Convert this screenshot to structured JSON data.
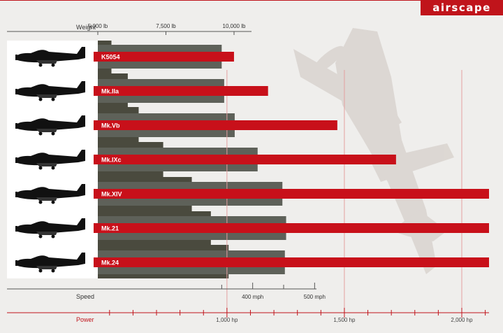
{
  "brand": {
    "logo_text": "airscape",
    "color": "#c0141b"
  },
  "chart_data": {
    "type": "bar",
    "categories": [
      "K5054",
      "Mk.IIa",
      "Mk.Vb",
      "Mk.IXc",
      "Mk.XIV",
      "Mk.21",
      "Mk.24"
    ],
    "series": [
      {
        "values": [
          5500,
          6100,
          6500,
          7400,
          8450,
          9150,
          9800
        ],
        "color": "#4a4a3e"
      },
      {
        "values": [
          350,
          354,
          371,
          408,
          448,
          454,
          452
        ],
        "color": "#5e6159"
      },
      {
        "values": [
          1030,
          1175,
          1470,
          1720,
          2120,
          2120,
          2120
        ],
        "color": "#c8101a"
      }
    ],
    "axes": {
      "weight": {
        "label": "Weight",
        "ticks": [
          "5,000 lb",
          "7,500 lb",
          "10,000 lb"
        ],
        "tick_values": [
          5000,
          7500,
          10000
        ],
        "range": [
          5000,
          10000
        ]
      },
      "speed": {
        "label": "Speed",
        "ticks": [
          "400 mph",
          "500 mph"
        ],
        "tick_values": [
          400,
          500
        ]
      },
      "power": {
        "label": "Power",
        "ticks": [
          "1,000 hp",
          "1,500 hp",
          "2,000 hp"
        ],
        "tick_values": [
          1000,
          1500,
          2000
        ]
      }
    },
    "grid": false,
    "legend": "none"
  }
}
